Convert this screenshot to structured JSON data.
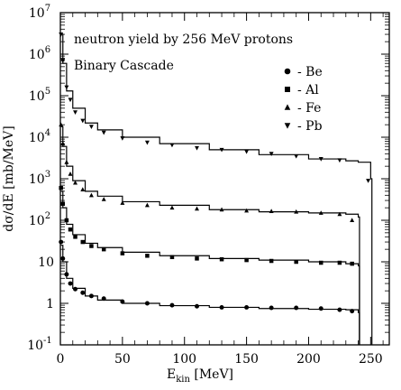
{
  "chart_data": {
    "type": "line",
    "title": "",
    "annotations": [
      "neutron yield by 256 MeV protons",
      "Binary Cascade"
    ],
    "xlabel": {
      "main": "E",
      "sub": "kin",
      "unit": " [MeV]"
    },
    "ylabel": "dσ/dE [mb/MeV]",
    "xlim": [
      0,
      265
    ],
    "ylim": [
      0.1,
      10000000
    ],
    "yscale": "log",
    "grid": false,
    "legend_position": "top-right",
    "x_ticks": [
      {
        "value": 0,
        "label": "0"
      },
      {
        "value": 50,
        "label": "50"
      },
      {
        "value": 100,
        "label": "100"
      },
      {
        "value": 150,
        "label": "150"
      },
      {
        "value": 200,
        "label": "200"
      },
      {
        "value": 250,
        "label": "250"
      }
    ],
    "y_ticks": [
      {
        "value": 0.1,
        "base": "10",
        "exp": "-1"
      },
      {
        "value": 1,
        "base": "1",
        "exp": ""
      },
      {
        "value": 10,
        "base": "10",
        "exp": ""
      },
      {
        "value": 100,
        "base": "10",
        "exp": "2"
      },
      {
        "value": 1000,
        "base": "10",
        "exp": "3"
      },
      {
        "value": 10000,
        "base": "10",
        "exp": "4"
      },
      {
        "value": 100000,
        "base": "10",
        "exp": "5"
      },
      {
        "value": 1000000,
        "base": "10",
        "exp": "6"
      },
      {
        "value": 10000000,
        "base": "10",
        "exp": "7"
      }
    ],
    "series": [
      {
        "name": "- Be",
        "marker": "circle",
        "x": [
          0.5,
          2,
          5,
          8,
          12,
          18,
          25,
          35,
          50,
          70,
          90,
          110,
          130,
          150,
          170,
          190,
          210,
          225,
          235
        ],
        "y": [
          30,
          12,
          5,
          3,
          2.2,
          1.8,
          1.5,
          1.3,
          1.1,
          1.0,
          0.9,
          0.85,
          0.8,
          0.8,
          0.78,
          0.78,
          0.75,
          0.7,
          0.65
        ],
        "model_x": [
          0.5,
          2,
          5,
          10,
          20,
          30,
          50,
          80,
          120,
          160,
          200,
          230,
          240,
          241
        ],
        "model_y": [
          25,
          10,
          4,
          2.3,
          1.5,
          1.2,
          1.0,
          0.88,
          0.8,
          0.75,
          0.72,
          0.7,
          0.6,
          0.1
        ]
      },
      {
        "name": "- Al",
        "marker": "square",
        "x": [
          0.5,
          2,
          5,
          8,
          12,
          18,
          25,
          35,
          50,
          70,
          90,
          110,
          130,
          150,
          170,
          190,
          210,
          225,
          235
        ],
        "y": [
          600,
          250,
          100,
          60,
          40,
          30,
          24,
          20,
          16,
          14,
          13,
          12,
          11.5,
          11,
          10.5,
          10,
          9.5,
          9.5,
          9
        ],
        "model_x": [
          0.5,
          2,
          5,
          10,
          20,
          30,
          50,
          80,
          120,
          160,
          200,
          230,
          240,
          241
        ],
        "model_y": [
          500,
          200,
          80,
          45,
          28,
          22,
          17,
          14,
          12,
          11,
          10,
          9,
          8,
          0.1
        ]
      },
      {
        "name": "- Fe",
        "marker": "triangle-up",
        "x": [
          0.5,
          2,
          5,
          8,
          12,
          18,
          25,
          35,
          50,
          70,
          90,
          110,
          130,
          150,
          170,
          190,
          210,
          225,
          235
        ],
        "y": [
          20000,
          7000,
          2500,
          1300,
          800,
          550,
          400,
          320,
          260,
          230,
          200,
          190,
          180,
          170,
          165,
          160,
          150,
          140,
          100
        ],
        "model_x": [
          0.5,
          2,
          5,
          10,
          20,
          30,
          50,
          80,
          120,
          160,
          200,
          230,
          240,
          241
        ],
        "model_y": [
          18000,
          6000,
          2000,
          900,
          500,
          380,
          280,
          230,
          180,
          160,
          150,
          140,
          120,
          0.1
        ]
      },
      {
        "name": "- Pb",
        "marker": "triangle-down",
        "x": [
          0.5,
          2,
          5,
          8,
          12,
          18,
          25,
          35,
          50,
          70,
          90,
          110,
          130,
          150,
          170,
          190,
          210,
          225,
          248
        ],
        "y": [
          3000000,
          700000,
          160000,
          80000,
          40000,
          25000,
          18000,
          13000,
          9500,
          7500,
          6500,
          5500,
          5000,
          4500,
          4000,
          3500,
          3000,
          2800,
          900
        ],
        "model_x": [
          0.5,
          2,
          5,
          10,
          20,
          30,
          50,
          80,
          120,
          160,
          200,
          230,
          240,
          250,
          251
        ],
        "model_y": [
          3000000,
          600000,
          130000,
          50000,
          22000,
          15000,
          10000,
          7000,
          5000,
          3800,
          3000,
          2700,
          2500,
          1000,
          0.1
        ]
      }
    ]
  }
}
